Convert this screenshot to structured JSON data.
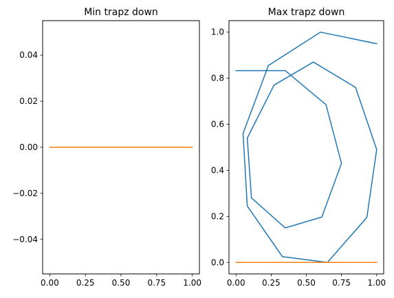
{
  "colors": {
    "blue": "#1f77b4",
    "orange": "#ff7f0e"
  },
  "chart_data": [
    {
      "type": "line",
      "title": "Min trapz down",
      "xlim": [
        -0.05,
        1.05
      ],
      "ylim": [
        -0.055,
        0.055
      ],
      "x_ticks": [
        0.0,
        0.25,
        0.5,
        0.75,
        1.0
      ],
      "x_tick_labels": [
        "0.00",
        "0.25",
        "0.50",
        "0.75",
        "1.00"
      ],
      "y_ticks": [
        -0.04,
        -0.02,
        0.0,
        0.02,
        0.04
      ],
      "y_tick_labels": [
        "−0.04",
        "−0.02",
        "0.00",
        "0.02",
        "0.04"
      ],
      "grid": false,
      "series": [
        {
          "color": "#ff7f0e",
          "x": [
            0.0,
            1.0
          ],
          "y": [
            0.0,
            0.0
          ]
        }
      ]
    },
    {
      "type": "line",
      "title": "Max trapz down",
      "xlim": [
        -0.05,
        1.05
      ],
      "ylim": [
        -0.05,
        1.05
      ],
      "x_ticks": [
        0.0,
        0.25,
        0.5,
        0.75,
        1.0
      ],
      "x_tick_labels": [
        "0.00",
        "0.25",
        "0.50",
        "0.75",
        "1.00"
      ],
      "y_ticks": [
        0.0,
        0.2,
        0.4,
        0.6,
        0.8,
        1.0
      ],
      "y_tick_labels": [
        "0.0",
        "0.2",
        "0.4",
        "0.6",
        "0.8",
        "1.0"
      ],
      "grid": false,
      "series": [
        {
          "color": "#1f77b4",
          "x": [
            1.0,
            0.6,
            0.23,
            0.05,
            0.08,
            0.33,
            0.65,
            0.93,
            1.0,
            0.85,
            0.55,
            0.27,
            0.08,
            0.11,
            0.35,
            0.61,
            0.75,
            0.64,
            0.35,
            0.0
          ],
          "y": [
            0.95,
            1.0,
            0.855,
            0.56,
            0.245,
            0.025,
            0.0,
            0.195,
            0.49,
            0.76,
            0.87,
            0.77,
            0.54,
            0.28,
            0.15,
            0.197,
            0.43,
            0.685,
            0.833,
            0.833
          ]
        },
        {
          "color": "#ff7f0e",
          "x": [
            0.0,
            1.0
          ],
          "y": [
            0.0,
            0.0
          ]
        }
      ]
    }
  ]
}
